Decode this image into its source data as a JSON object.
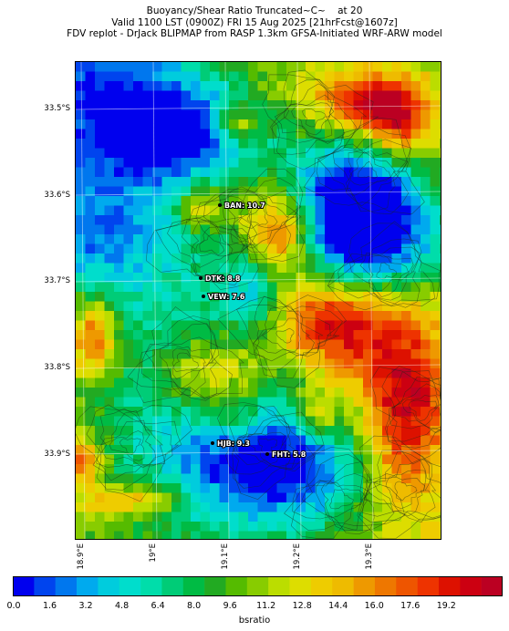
{
  "title": {
    "line1": "Buoyancy/Shear Ratio Truncated~C~    at 20",
    "line2": "Valid 1100 LST (0900Z) FRI 15 Aug 2025 [21hrFcst@1607z]",
    "line3": "FDV replot - DrJack BLIPMAP from RASP 1.3km GFSA-Initiated WRF-ARW model"
  },
  "map": {
    "lat_labels": [
      "33.5°S",
      "33.6°S",
      "33.7°S",
      "33.8°S",
      "33.9°S"
    ],
    "lon_labels": [
      "18.9°E",
      "19°E",
      "19.1°E",
      "19.2°E",
      "19.3°E"
    ],
    "stations": [
      {
        "name": "BAN: 10.7",
        "value": 10.7
      },
      {
        "name": "DTK: 8.8",
        "value": 8.8
      },
      {
        "name": "VEW: 7.6",
        "value": 7.6
      },
      {
        "name": "HJB: 9.3",
        "value": 9.3
      },
      {
        "name": "FHT: 5.8",
        "value": 5.8
      }
    ]
  },
  "colorbar": {
    "label": "bsratio",
    "ticks": [
      "0.0",
      "1.6",
      "3.2",
      "4.8",
      "6.4",
      "8.0",
      "9.6",
      "11.2",
      "12.8",
      "14.4",
      "16.0",
      "17.6",
      "19.2"
    ],
    "colors": [
      "#0000ee",
      "#0044ee",
      "#0077ee",
      "#00aaee",
      "#00ccdd",
      "#00ddcc",
      "#00ddaa",
      "#00cc77",
      "#00bb44",
      "#22aa22",
      "#55bb00",
      "#88cc00",
      "#bbdd00",
      "#dddd00",
      "#eecc00",
      "#eebb00",
      "#ee9900",
      "#ee7700",
      "#ee5500",
      "#ee3300",
      "#dd1100",
      "#cc0011",
      "#bb0022"
    ]
  }
}
